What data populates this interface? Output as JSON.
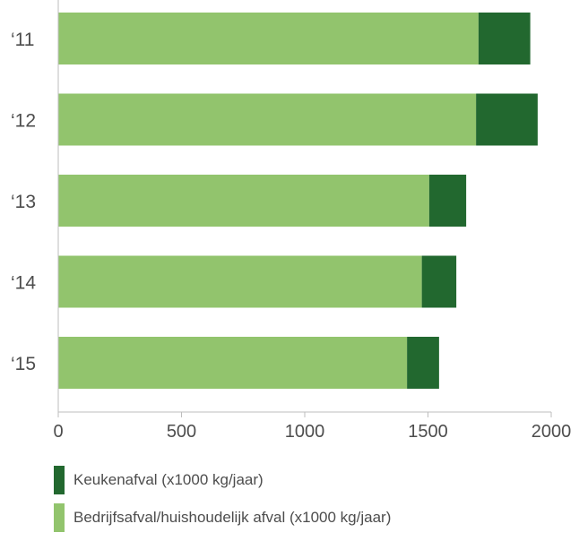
{
  "chart_data": {
    "type": "bar",
    "orientation": "horizontal",
    "stacked": true,
    "categories": [
      "‘11",
      "‘12",
      "‘13",
      "‘14",
      "‘15"
    ],
    "series": [
      {
        "name": "Bedrijfsafval/huishoudelijk afval (x1000 kg/jaar)",
        "color": "#92c46d",
        "values": [
          1705,
          1695,
          1505,
          1475,
          1415
        ]
      },
      {
        "name": "Keukenafval (x1000 kg/jaar)",
        "color": "#22682f",
        "values": [
          210,
          250,
          150,
          140,
          130
        ]
      }
    ],
    "xlim": [
      0,
      2000
    ],
    "xticks": [
      0,
      500,
      1000,
      1500,
      2000
    ],
    "title": "",
    "xlabel": "",
    "ylabel": "",
    "grid": false,
    "legend_position": "bottom-left",
    "legend_order": [
      1,
      0
    ]
  }
}
